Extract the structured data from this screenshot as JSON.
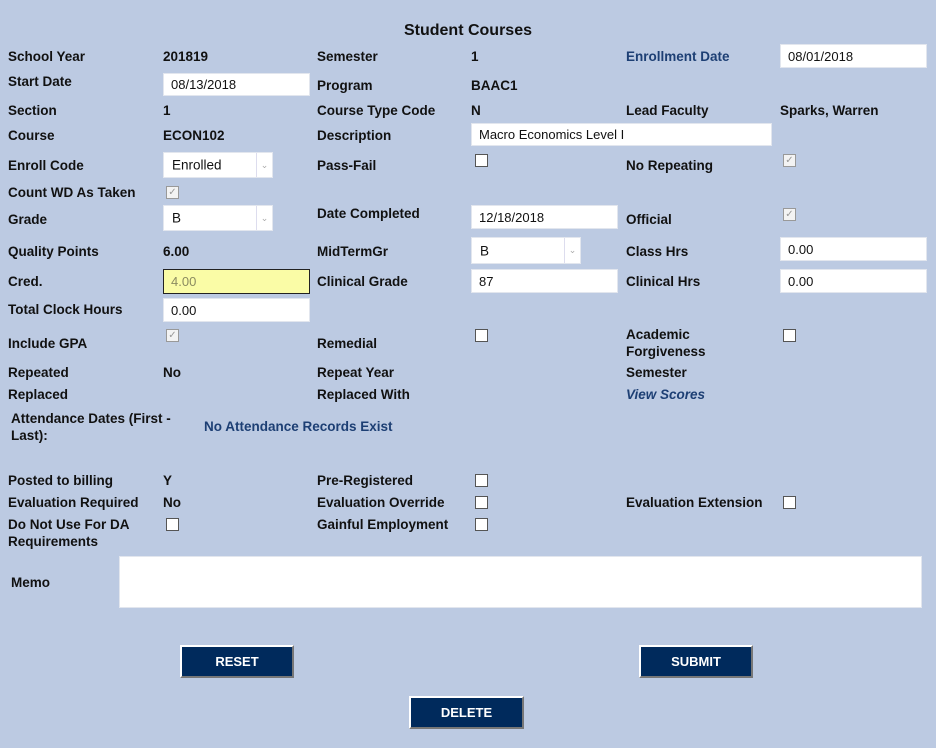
{
  "title": "Student Courses",
  "colors": {
    "background": "#bccae2",
    "button": "#002a5c",
    "link": "#1d3f74",
    "highlight_input": "#fafca6"
  },
  "fields": {
    "school_year": {
      "label": "School Year",
      "value": "201819"
    },
    "semester": {
      "label": "Semester",
      "value": "1"
    },
    "enrollment_date": {
      "label": "Enrollment Date",
      "value": "08/01/2018"
    },
    "start_date": {
      "label": "Start Date",
      "value": "08/13/2018"
    },
    "program": {
      "label": "Program",
      "value": "BAAC1"
    },
    "section": {
      "label": "Section",
      "value": "1"
    },
    "course_type_code": {
      "label": "Course Type Code",
      "value": "N"
    },
    "lead_faculty": {
      "label": "Lead Faculty",
      "value": "Sparks, Warren"
    },
    "course": {
      "label": "Course",
      "value": "ECON102"
    },
    "description": {
      "label": "Description",
      "value": "Macro Economics Level I"
    },
    "enroll_code": {
      "label": "Enroll Code",
      "value": "Enrolled"
    },
    "pass_fail": {
      "label": "Pass-Fail",
      "checked": false
    },
    "no_repeating": {
      "label": "No Repeating",
      "checked": true,
      "disabled": true
    },
    "count_wd": {
      "label": "Count WD As Taken",
      "checked": true,
      "disabled": true
    },
    "grade": {
      "label": "Grade",
      "value": "B"
    },
    "date_completed": {
      "label": "Date Completed",
      "value": "12/18/2018"
    },
    "official": {
      "label": "Official",
      "checked": true,
      "disabled": true
    },
    "quality_points": {
      "label": "Quality Points",
      "value": "6.00"
    },
    "midtermgr": {
      "label": "MidTermGr",
      "value": "B"
    },
    "class_hrs": {
      "label": "Class Hrs",
      "value": "0.00"
    },
    "cred": {
      "label": "Cred.",
      "value": "4.00"
    },
    "clinical_grade": {
      "label": "Clinical Grade",
      "value": "87"
    },
    "clinical_hrs": {
      "label": "Clinical Hrs",
      "value": "0.00"
    },
    "total_clock_hours": {
      "label": "Total Clock Hours",
      "value": "0.00"
    },
    "include_gpa": {
      "label": "Include GPA",
      "checked": true,
      "disabled": true
    },
    "remedial": {
      "label": "Remedial",
      "checked": false
    },
    "academic_forgiveness": {
      "label1": "Academic",
      "label2": "Forgiveness",
      "checked": false
    },
    "repeated": {
      "label": "Repeated",
      "value": "No"
    },
    "repeat_year": {
      "label": "Repeat Year"
    },
    "repeat_semester": {
      "label": "Semester"
    },
    "replaced": {
      "label": "Replaced"
    },
    "replaced_with": {
      "label": "Replaced With"
    },
    "view_scores": {
      "label": "View Scores"
    },
    "attendance": {
      "label1": "Attendance Dates (First -",
      "label2": "Last):",
      "value": "No Attendance Records Exist"
    },
    "posted_to_billing": {
      "label": "Posted to billing",
      "value": "Y"
    },
    "pre_registered": {
      "label": "Pre-Registered",
      "checked": false
    },
    "evaluation_required": {
      "label": "Evaluation Required",
      "value": "No"
    },
    "evaluation_override": {
      "label": "Evaluation Override",
      "checked": false
    },
    "evaluation_extension": {
      "label": "Evaluation Extension",
      "checked": false
    },
    "do_not_use_da": {
      "label1": "Do Not Use For DA",
      "label2": "Requirements",
      "checked": false
    },
    "gainful_employment": {
      "label": "Gainful Employment",
      "checked": false
    },
    "memo": {
      "label": "Memo",
      "value": ""
    }
  },
  "buttons": {
    "reset": "RESET",
    "submit": "SUBMIT",
    "delete": "DELETE"
  }
}
